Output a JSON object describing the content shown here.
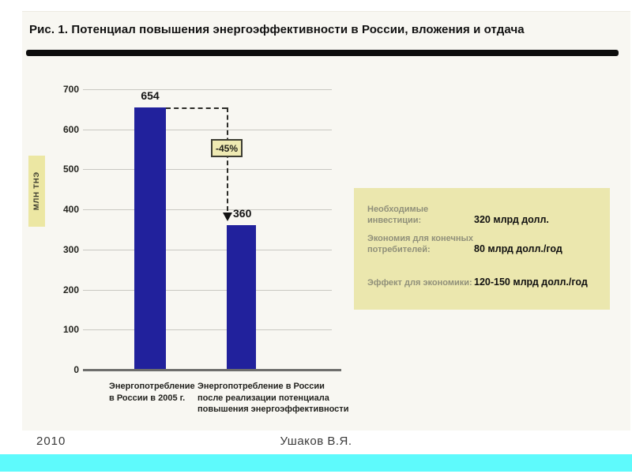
{
  "slide": {
    "title": "Рис. 1. Потенциал повышения энергоэффективности в России, вложения и отдача",
    "footer": {
      "year": "2010",
      "author": "Ушаков В.Я."
    }
  },
  "chart_data": {
    "type": "bar",
    "title": "Потенциал повышения энергоэффективности в России",
    "ylabel": "млн тнэ",
    "xlabel": "",
    "ylim": [
      0,
      700
    ],
    "ytick_step": 100,
    "grid": true,
    "legend": "none",
    "categories": [
      "Энергопотребление в России в 2005 г.",
      "Энергопотребление в России после реализации потенциала повышения энергоэффективности"
    ],
    "category_lines": [
      [
        "Энергопотребление",
        "в России в 2005 г."
      ],
      [
        "Энергопотребление  в России",
        "после реализации потенциала",
        "повышения энергоэффективности"
      ]
    ],
    "values": [
      654,
      360
    ],
    "bar_color": "#21219c",
    "annotation": {
      "label": "-45%",
      "from_value": 654,
      "to_value": 360
    }
  },
  "info_box": {
    "rows": [
      {
        "label": [
          "Необходимые инвестиции:"
        ],
        "value": "320 млрд долл."
      },
      {
        "label": [
          "Экономия для конечных",
          "потребителей:"
        ],
        "value": "80 млрд долл./год"
      },
      {
        "label": [
          "Эффект для экономики:"
        ],
        "value": "120-150 млрд долл./год"
      }
    ]
  },
  "colors": {
    "bar": "#21219c",
    "info_box_bg": "#ebe7ae",
    "badge_bg": "#efeab3",
    "unit_strip_bg": "#ece7a3",
    "bottom_bar": "#5efafc",
    "scan_bg": "#f8f7f2",
    "grid": "#c9c8c2"
  }
}
